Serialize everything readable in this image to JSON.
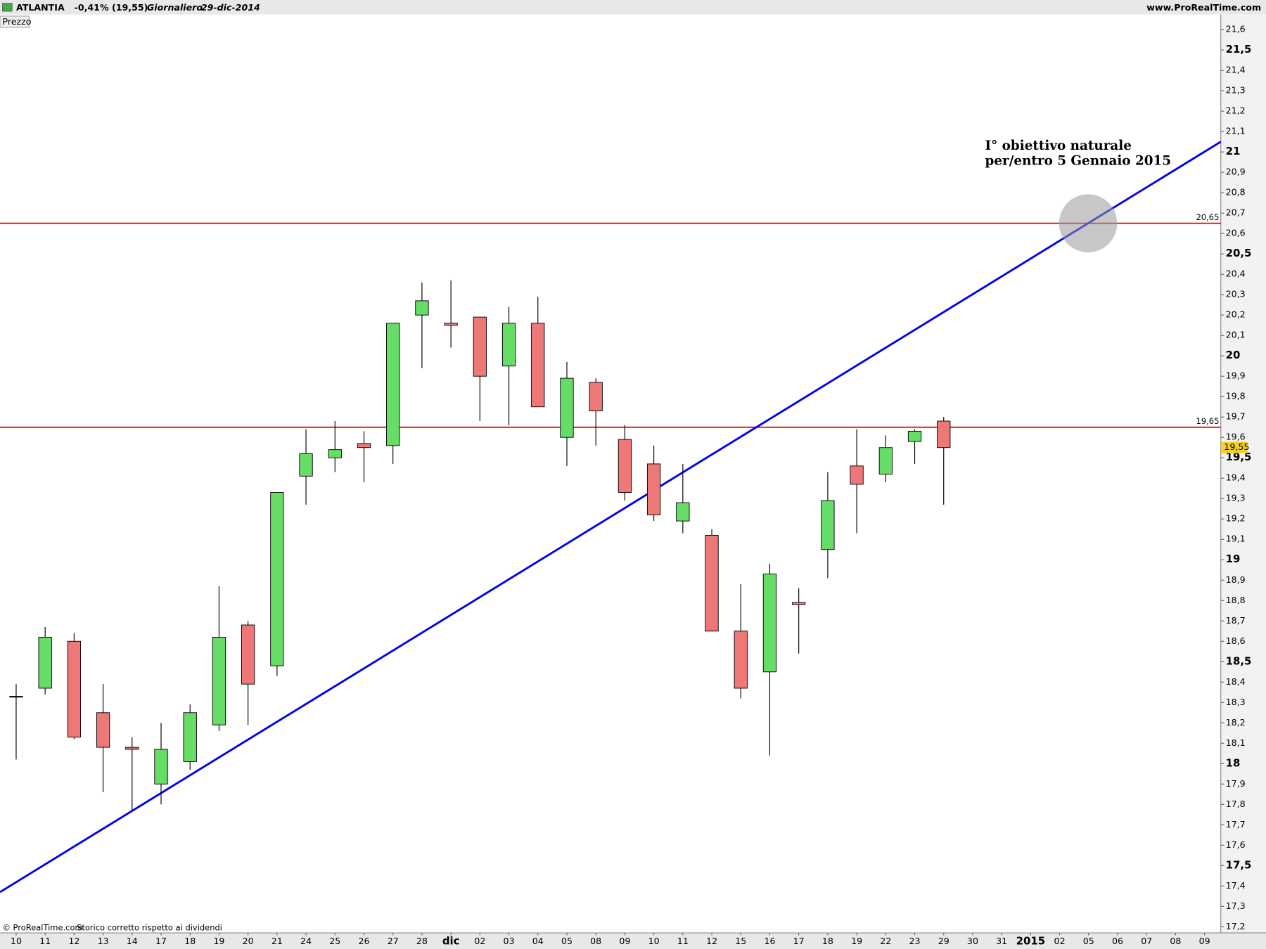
{
  "chart_data": {
    "type": "candlestick",
    "header": [
      "ATLANTIA",
      "-0,41% (19,55)",
      "Giornaliero",
      "29-dic-2014"
    ],
    "source": "www.ProRealTime.com",
    "panel_label": "Prezzo",
    "footnote": [
      "© ProRealTime.com",
      "Storico corretto rispetto ai dividendi"
    ],
    "annotation": [
      "I° obiettivo naturale",
      "per/entro 5 Gennaio 2015"
    ],
    "categories": [
      "10",
      "11",
      "12",
      "13",
      "14",
      "17",
      "18",
      "19",
      "20",
      "21",
      "24",
      "25",
      "26",
      "27",
      "28",
      "dic",
      "02",
      "03",
      "04",
      "05",
      "08",
      "09",
      "10",
      "11",
      "12",
      "15",
      "16",
      "17",
      "18",
      "19",
      "22",
      "23",
      "29",
      "30",
      "31",
      "2015",
      "02",
      "05",
      "06",
      "07",
      "08",
      "09"
    ],
    "open": [
      18.33,
      18.37,
      18.6,
      18.25,
      18.08,
      17.9,
      18.01,
      18.19,
      18.68,
      18.48,
      19.41,
      19.5,
      19.57,
      19.56,
      20.2,
      20.16,
      20.19,
      19.95,
      20.16,
      19.6,
      19.87,
      19.59,
      19.47,
      19.19,
      19.12,
      18.65,
      18.45,
      18.79,
      19.05,
      19.46,
      19.42,
      19.58,
      19.68,
      null,
      null,
      null,
      null,
      null,
      null,
      null,
      null,
      null
    ],
    "high": [
      18.39,
      18.67,
      18.64,
      18.39,
      18.13,
      18.2,
      18.29,
      18.87,
      18.7,
      19.33,
      19.64,
      19.68,
      19.63,
      20.16,
      20.36,
      20.37,
      20.19,
      20.24,
      20.29,
      19.97,
      19.89,
      19.66,
      19.56,
      19.47,
      19.15,
      18.88,
      18.98,
      18.86,
      19.43,
      19.64,
      19.61,
      19.64,
      19.7,
      null,
      null,
      null,
      null,
      null,
      null,
      null,
      null,
      null
    ],
    "low": [
      18.02,
      18.34,
      18.12,
      17.86,
      17.77,
      17.8,
      17.97,
      18.16,
      18.19,
      18.43,
      19.27,
      19.43,
      19.38,
      19.47,
      19.94,
      20.04,
      19.68,
      19.66,
      19.75,
      19.46,
      19.56,
      19.29,
      19.19,
      19.13,
      18.65,
      18.32,
      18.04,
      18.54,
      18.91,
      19.13,
      19.38,
      19.47,
      19.27,
      null,
      null,
      null,
      null,
      null,
      null,
      null,
      null,
      null
    ],
    "close": [
      18.33,
      18.62,
      18.13,
      18.08,
      18.07,
      18.07,
      18.25,
      18.62,
      18.39,
      19.33,
      19.52,
      19.54,
      19.55,
      20.16,
      20.27,
      20.15,
      19.9,
      20.16,
      19.75,
      19.89,
      19.73,
      19.33,
      19.22,
      19.28,
      18.65,
      18.37,
      18.93,
      18.78,
      19.29,
      19.37,
      19.55,
      19.63,
      19.55,
      null,
      null,
      null,
      null,
      null,
      null,
      null,
      null,
      null
    ],
    "up_color": "#66dd66",
    "down_color": "#ee7777",
    "ylim": [
      17.17,
      21.67
    ],
    "yticks": [
      {
        "value": 17.2,
        "label": "17,2"
      },
      {
        "value": 17.3,
        "label": "17,3"
      },
      {
        "value": 17.4,
        "label": "17,4"
      },
      {
        "value": 17.5,
        "label": "17,5"
      },
      {
        "value": 17.6,
        "label": "17,6"
      },
      {
        "value": 17.7,
        "label": "17,7"
      },
      {
        "value": 17.8,
        "label": "17,8"
      },
      {
        "value": 17.9,
        "label": "17,9"
      },
      18,
      {
        "value": 18.1,
        "label": "18,1"
      },
      {
        "value": 18.2,
        "label": "18,2"
      },
      {
        "value": 18.3,
        "label": "18,3"
      },
      {
        "value": 18.4,
        "label": "18,4"
      },
      {
        "value": 18.5,
        "label": "18,5"
      },
      {
        "value": 18.6,
        "label": "18,6"
      },
      {
        "value": 18.7,
        "label": "18,7"
      },
      {
        "value": 18.8,
        "label": "18,8"
      },
      {
        "value": 18.9,
        "label": "18,9"
      },
      19,
      {
        "value": 19.1,
        "label": "19,1"
      },
      {
        "value": 19.2,
        "label": "19,2"
      },
      {
        "value": 19.3,
        "label": "19,3"
      },
      {
        "value": 19.4,
        "label": "19,4"
      },
      {
        "value": 19.5,
        "label": "19,5"
      },
      {
        "value": 19.6,
        "label": "19,6"
      },
      {
        "value": 19.7,
        "label": "19,7"
      },
      {
        "value": 19.8,
        "label": "19,8"
      },
      {
        "value": 19.9,
        "label": "19,9"
      },
      20,
      {
        "value": 20.1,
        "label": "20,1"
      },
      {
        "value": 20.2,
        "label": "20,2"
      },
      {
        "value": 20.3,
        "label": "20,3"
      },
      {
        "value": 20.4,
        "label": "20,4"
      },
      {
        "value": 20.5,
        "label": "20,5"
      },
      {
        "value": 20.6,
        "label": "20,6"
      },
      {
        "value": 20.7,
        "label": "20,7"
      },
      {
        "value": 20.8,
        "label": "20,8"
      },
      {
        "value": 20.9,
        "label": "20,9"
      },
      21,
      {
        "value": 21.1,
        "label": "21,1"
      },
      {
        "value": 21.2,
        "label": "21,2"
      },
      {
        "value": 21.3,
        "label": "21,3"
      },
      {
        "value": 21.4,
        "label": "21,4"
      },
      {
        "value": 21.5,
        "label": "21,5"
      },
      {
        "value": 21.6,
        "label": "21,6"
      }
    ],
    "hlines": [
      {
        "value": 20.65,
        "label": "20,65",
        "color": "#e00000"
      },
      {
        "value": 19.65,
        "label": "19,65",
        "color": "#e00000"
      }
    ],
    "last_price": {
      "value": 19.55,
      "label": "19,55",
      "color": "#f5d020"
    },
    "trendline": {
      "start": 17.37,
      "end": 21.05,
      "color": "#0000ee"
    }
  }
}
